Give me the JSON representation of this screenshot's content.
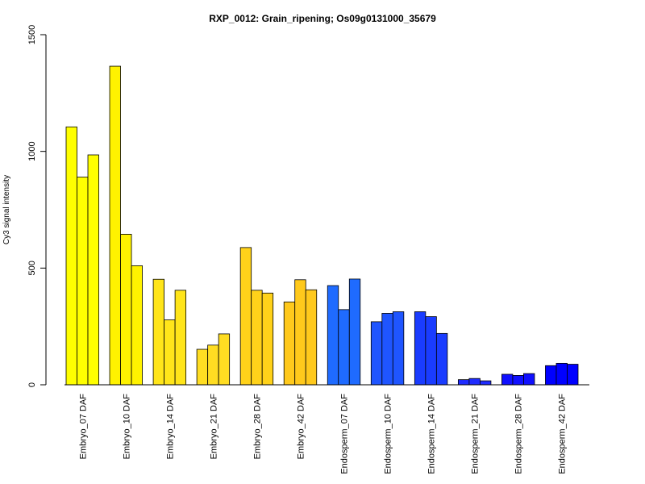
{
  "chart_data": {
    "type": "bar",
    "title": "RXP_0012: Grain_ripening; Os09g0131000_35679",
    "xlabel": "",
    "ylabel": "Cy3 signal intensity",
    "ylim": [
      0,
      1500
    ],
    "yticks": [
      0,
      500,
      1000,
      1500
    ],
    "grid": false,
    "legend": "none",
    "bars_per_group": 3,
    "categories": [
      "Embryo_07 DAF",
      "Embryo_10 DAF",
      "Embryo_14 DAF",
      "Embryo_21 DAF",
      "Embryo_28 DAF",
      "Embryo_42 DAF",
      "Endosperm_07 DAF",
      "Endosperm_10 DAF",
      "Endosperm_14 DAF",
      "Endosperm_21 DAF",
      "Endosperm_28 DAF",
      "Endosperm_42 DAF"
    ],
    "group_colors": [
      "#FFFF00",
      "#FFF200",
      "#FFE51A",
      "#FFDD22",
      "#FFD21A",
      "#FFC91C",
      "#1F6BFF",
      "#1F55FF",
      "#1A3CFF",
      "#1F2CFF",
      "#1010FF",
      "#0000FF"
    ],
    "values": [
      [
        1105,
        890,
        985
      ],
      [
        1365,
        645,
        510
      ],
      [
        452,
        278,
        405
      ],
      [
        152,
        170,
        218
      ],
      [
        588,
        405,
        393
      ],
      [
        355,
        450,
        407
      ],
      [
        425,
        322,
        453
      ],
      [
        270,
        306,
        313
      ],
      [
        313,
        292,
        220
      ],
      [
        22,
        27,
        17
      ],
      [
        45,
        40,
        48
      ],
      [
        82,
        92,
        88
      ]
    ]
  }
}
